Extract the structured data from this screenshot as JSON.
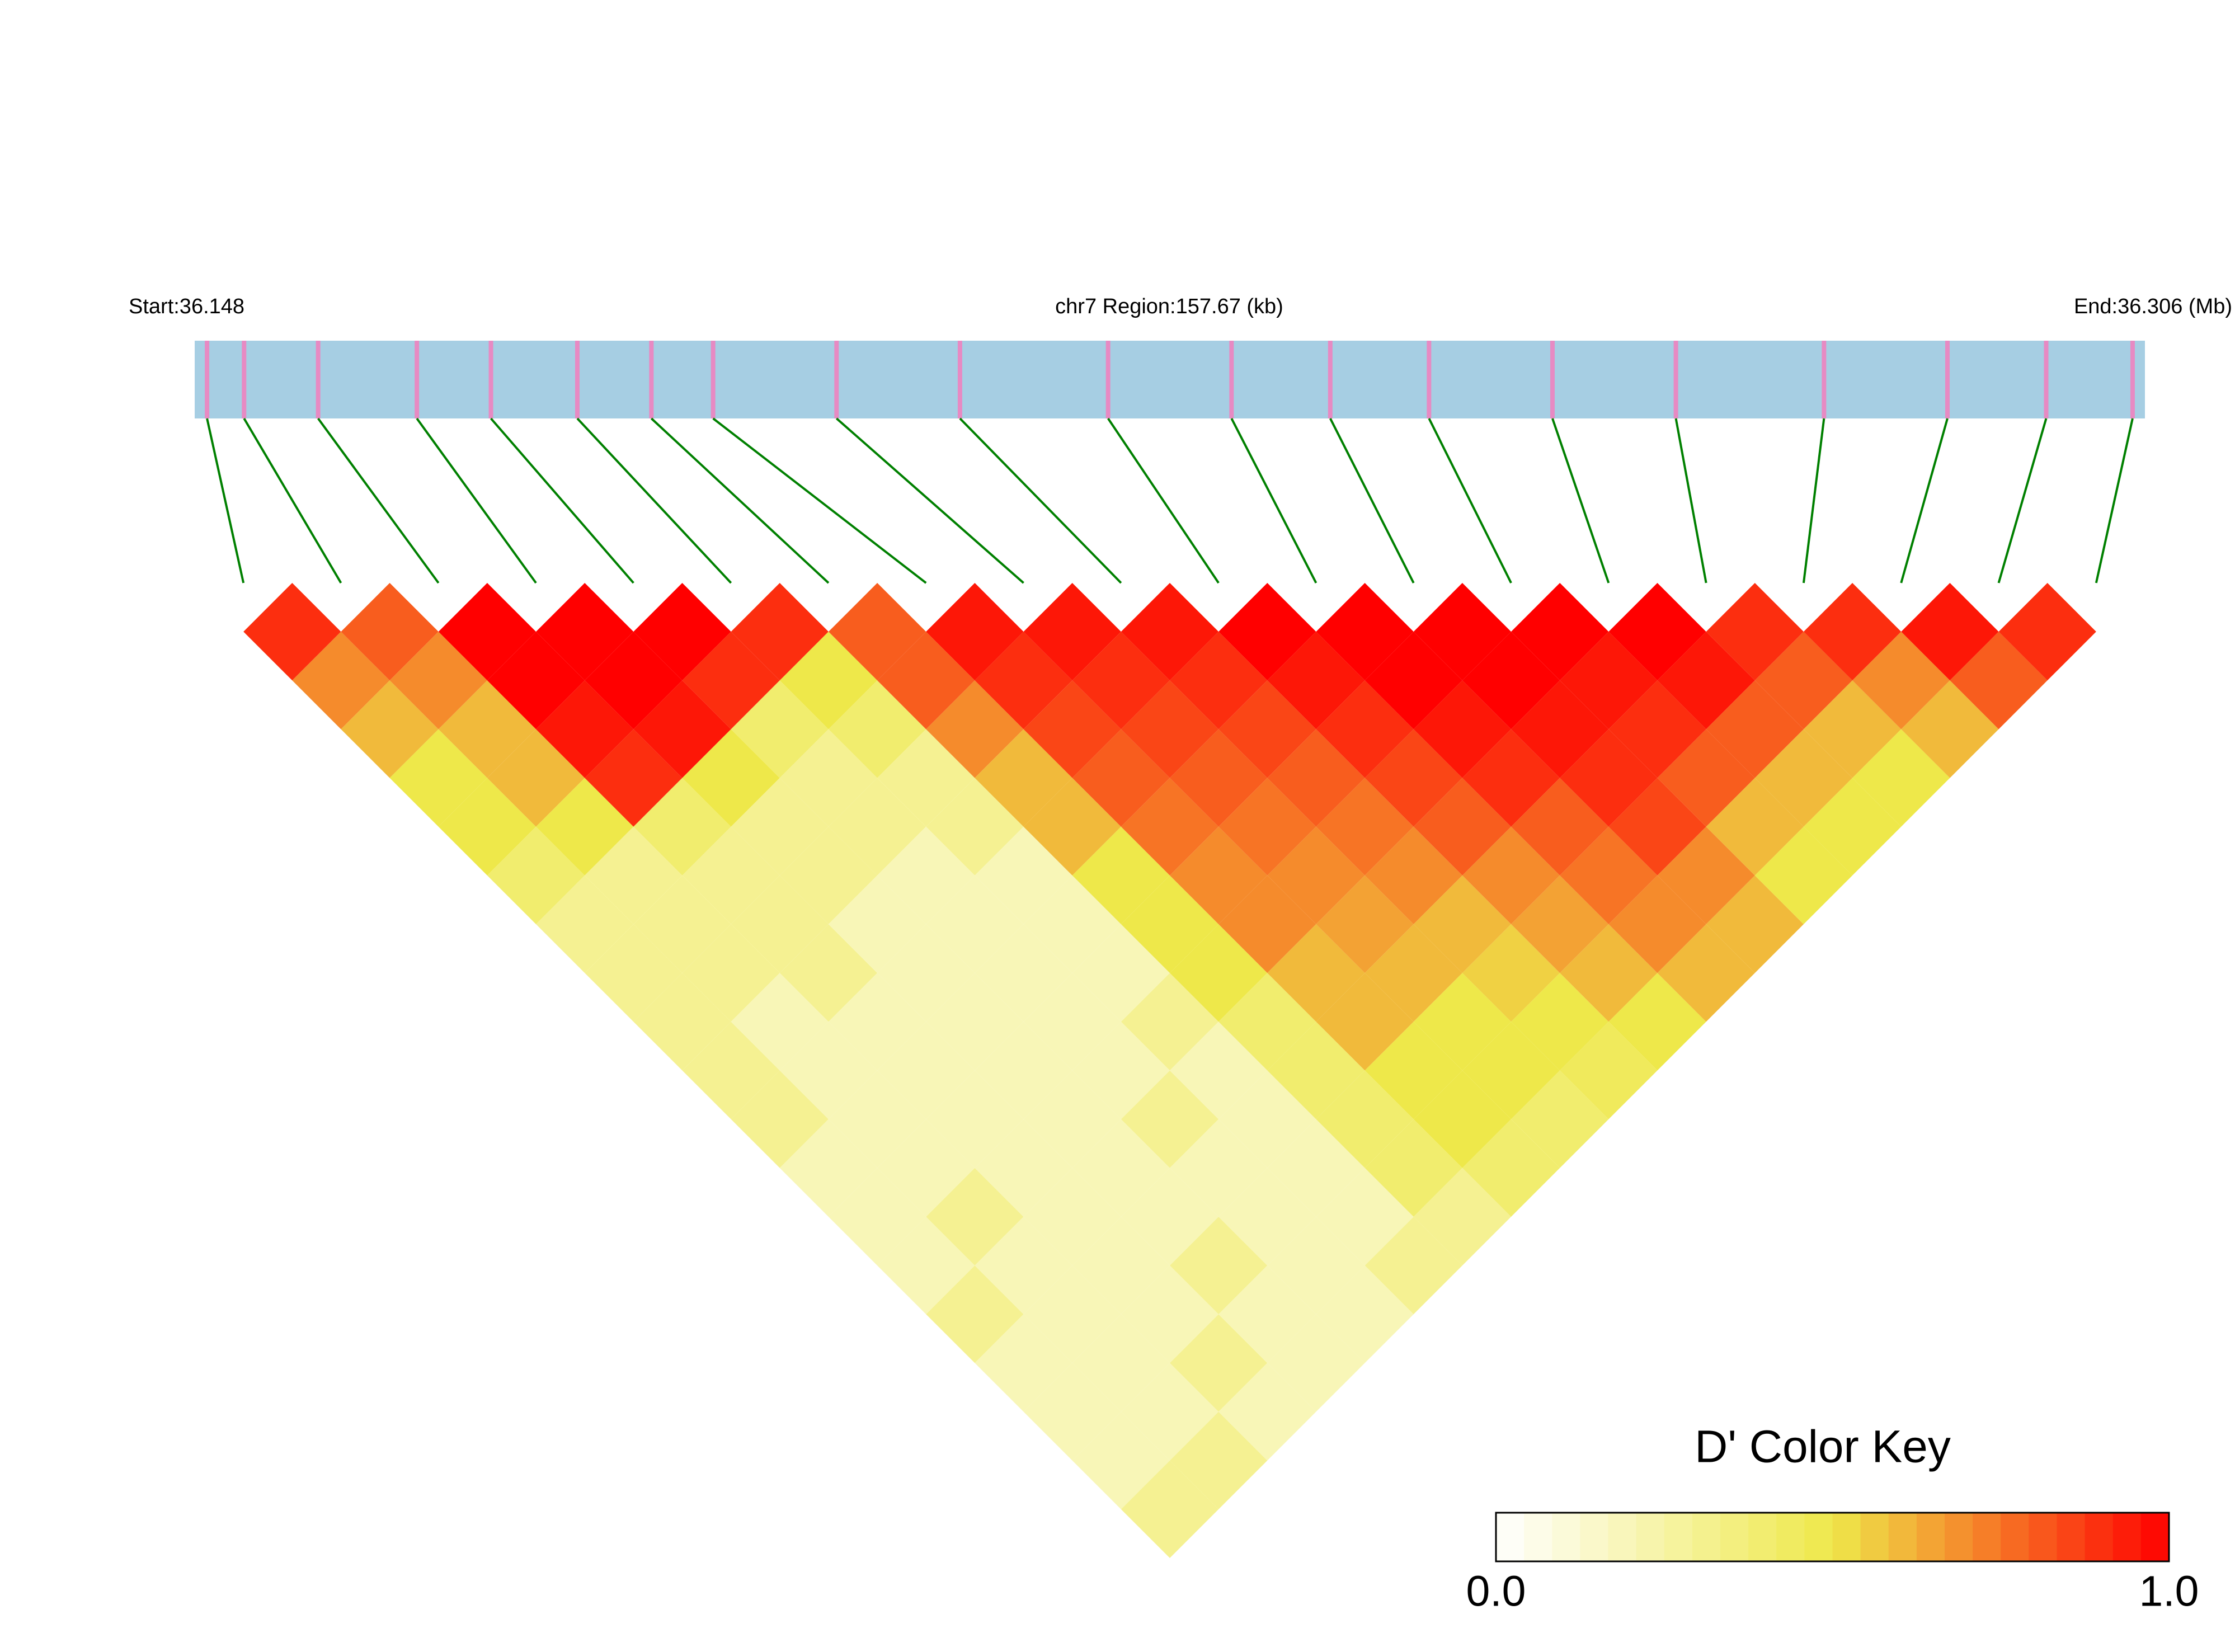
{
  "chart_data": {
    "type": "ld-heatmap",
    "start_label": "Start:36.148",
    "region_label": "chr7 Region:157.67 (kb)",
    "end_label": "End:36.306 (Mb)",
    "xlim": [
      36.148,
      36.306
    ],
    "snp_positions": [
      36.149,
      36.152,
      36.158,
      36.166,
      36.172,
      36.179,
      36.185,
      36.19,
      36.2,
      36.21,
      36.222,
      36.232,
      36.24,
      36.248,
      36.258,
      36.268,
      36.28,
      36.29,
      36.298,
      36.305
    ],
    "dprime": [
      [
        0.9,
        0.7,
        0.6,
        0.5,
        0.5,
        0.4,
        0.3,
        0.3,
        0.3,
        0.3,
        0.3,
        0.2,
        0.2,
        0.2,
        0.3,
        0.2,
        0.2,
        0.2,
        0.3
      ],
      [
        0.8,
        0.7,
        0.6,
        0.6,
        0.5,
        0.3,
        0.3,
        0.3,
        0.2,
        0.2,
        0.2,
        0.2,
        0.3,
        0.2,
        0.2,
        0.2,
        0.2,
        0.3
      ],
      [
        1,
        1,
        0.95,
        0.9,
        0.4,
        0.3,
        0.3,
        0.3,
        0.2,
        0.2,
        0.2,
        0.2,
        0.2,
        0.2,
        0.2,
        0.3,
        0.2
      ],
      [
        1,
        1,
        0.95,
        0.5,
        0.3,
        0.3,
        0.2,
        0.2,
        0.2,
        0.2,
        0.2,
        0.2,
        0.2,
        0.3,
        0.2,
        0.2
      ],
      [
        1,
        0.9,
        0.4,
        0.3,
        0.3,
        0.2,
        0.2,
        0.2,
        0.2,
        0.2,
        0.3,
        0.2,
        0.2,
        0.2,
        0.2
      ],
      [
        0.9,
        0.5,
        0.4,
        0.3,
        0.3,
        0.2,
        0.2,
        0.2,
        0.3,
        0.2,
        0.2,
        0.2,
        0.2,
        0.3
      ],
      [
        0.8,
        0.8,
        0.7,
        0.6,
        0.6,
        0.5,
        0.5,
        0.5,
        0.4,
        0.4,
        0.4,
        0.4,
        0.3
      ],
      [
        0.95,
        0.9,
        0.85,
        0.8,
        0.75,
        0.7,
        0.7,
        0.6,
        0.6,
        0.5,
        0.5,
        0.4
      ],
      [
        0.95,
        0.9,
        0.85,
        0.8,
        0.75,
        0.7,
        0.65,
        0.6,
        0.5,
        0.5,
        0.4
      ],
      [
        0.95,
        0.9,
        0.85,
        0.8,
        0.75,
        0.7,
        0.6,
        0.55,
        0.5,
        0.45
      ],
      [
        1,
        0.95,
        0.9,
        0.85,
        0.8,
        0.7,
        0.65,
        0.6,
        0.5
      ],
      [
        1,
        1,
        0.95,
        0.9,
        0.8,
        0.75,
        0.7,
        0.6
      ],
      [
        1,
        1,
        0.95,
        0.9,
        0.85,
        0.7,
        0.6
      ],
      [
        1,
        0.95,
        0.9,
        0.8,
        0.6,
        0.5
      ],
      [
        1,
        0.95,
        0.8,
        0.6,
        0.5
      ],
      [
        0.9,
        0.8,
        0.6,
        0.5
      ],
      [
        0.9,
        0.7,
        0.6
      ],
      [
        0.95,
        0.8
      ],
      [
        0.9
      ]
    ],
    "bar_color": "#a6cee3",
    "snp_color": "#e78ac3",
    "link_color": "#008000",
    "colorscale": [
      "#ffffff",
      "#eee84a",
      "#ff0000"
    ],
    "key_title": "D' Color Key",
    "key_lim": [
      0,
      1
    ],
    "key_ticks": [
      {
        "value": 0,
        "label": "0.0"
      },
      {
        "value": 1,
        "label": "1.0"
      }
    ]
  }
}
